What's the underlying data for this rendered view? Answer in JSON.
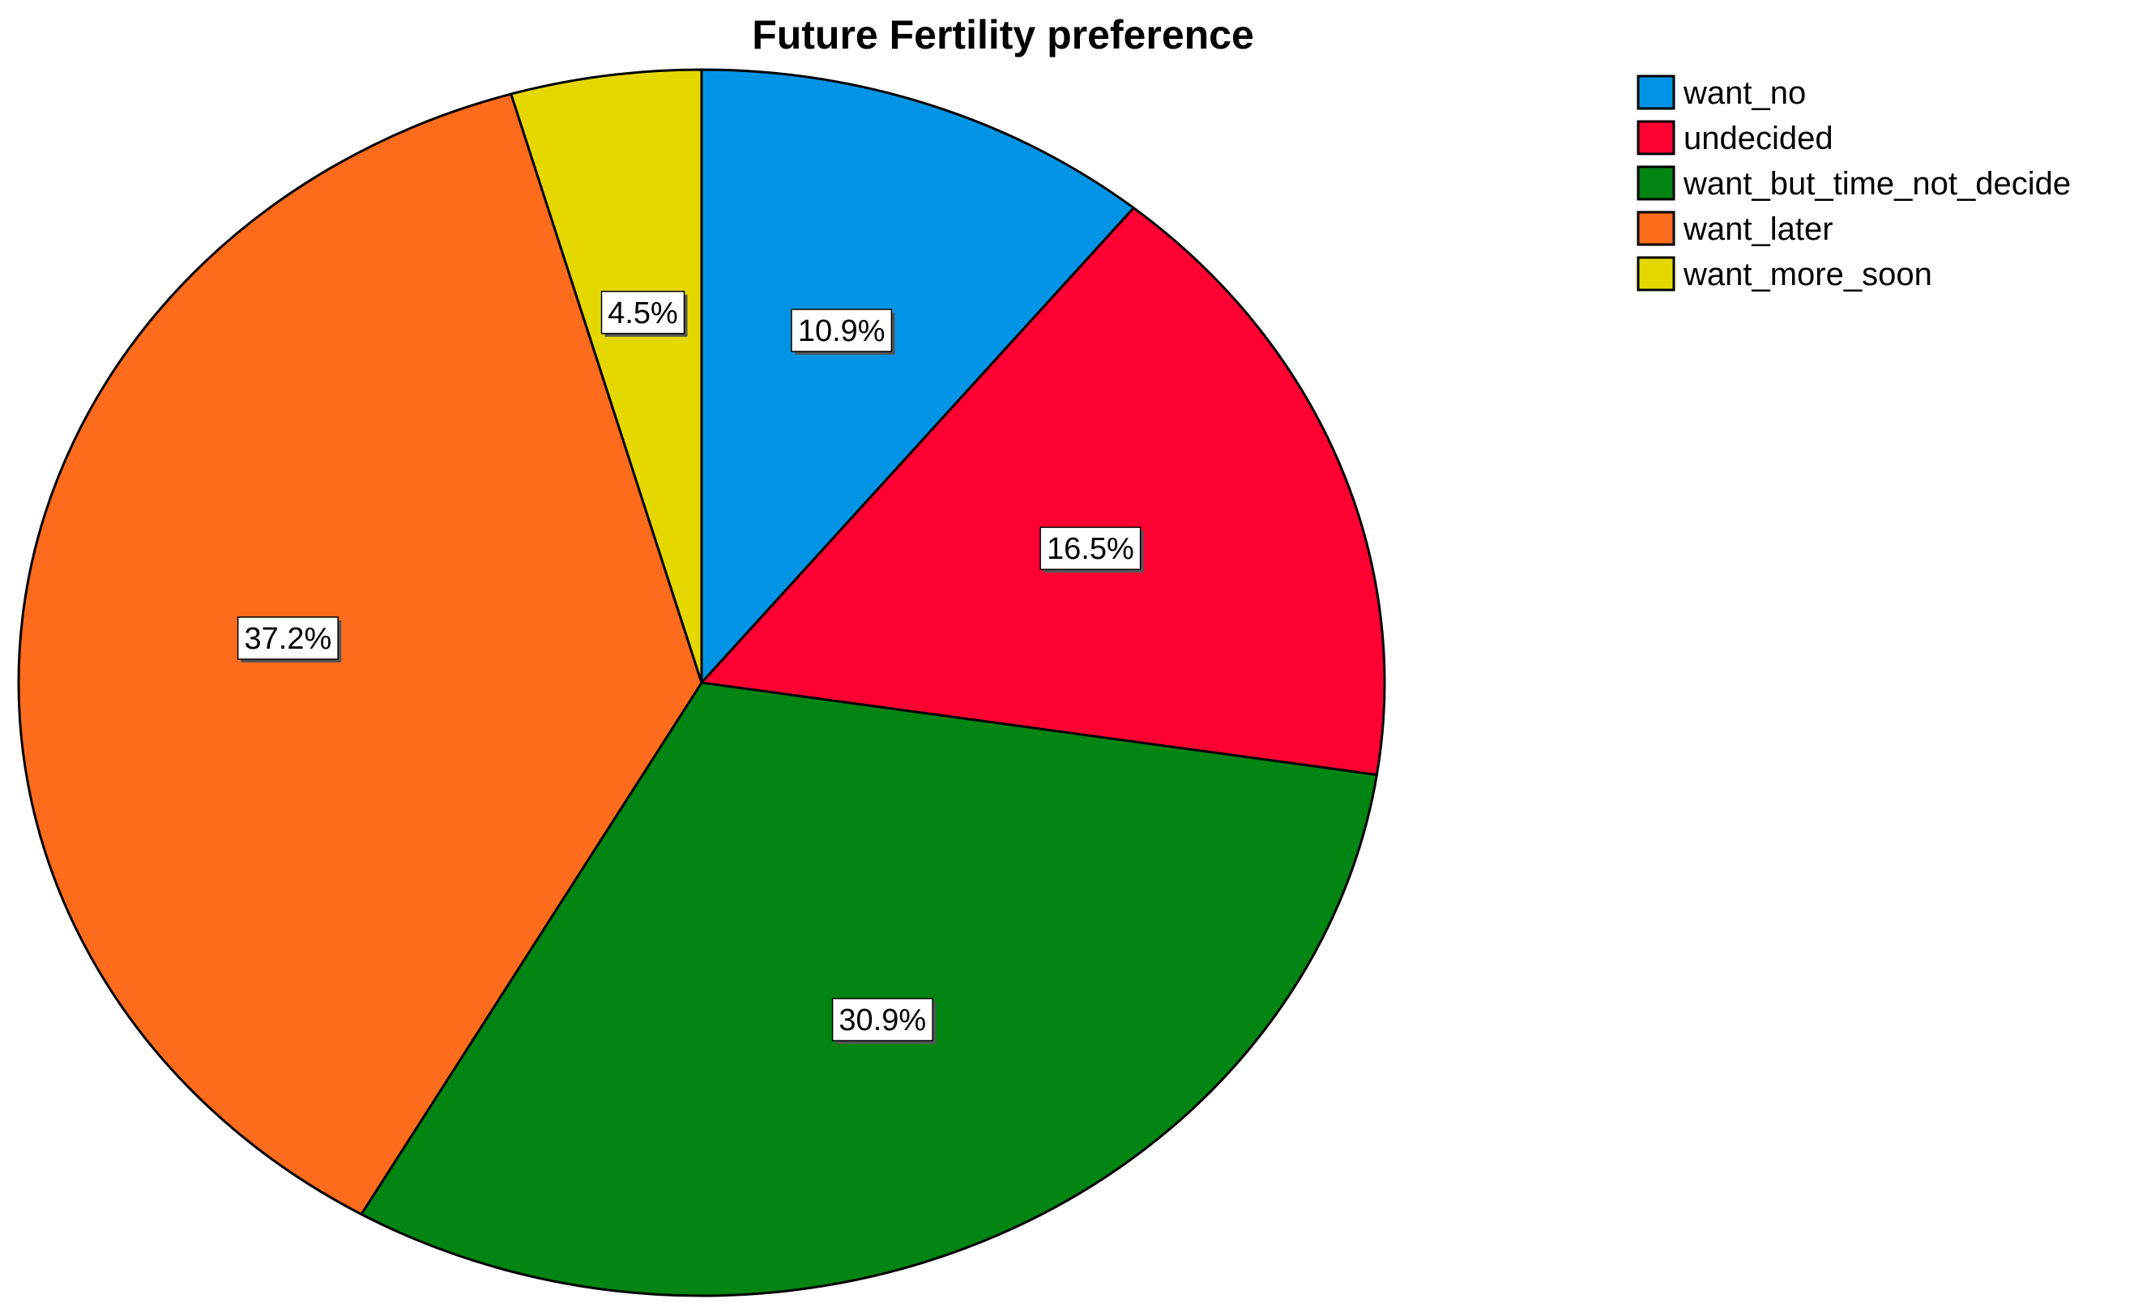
{
  "chart_data": {
    "type": "pie",
    "title": "Future Fertility preference",
    "slices": [
      {
        "label": "want_no",
        "value": 10.9,
        "display": "10.9%",
        "color": "#0394e6"
      },
      {
        "label": "undecided",
        "value": 16.5,
        "display": "16.5%",
        "color": "#ff0033"
      },
      {
        "label": "want_but_time_not_decide",
        "value": 30.9,
        "display": "30.9%",
        "color": "#028512"
      },
      {
        "label": "want_later",
        "value": 37.2,
        "display": "37.2%",
        "color": "#fd6b1c"
      },
      {
        "label": "want_more_soon",
        "value": 4.5,
        "display": "4.5%",
        "color": "#e5d800"
      }
    ],
    "start_angle": "12 o'clock",
    "direction": "clockwise",
    "legend_position": "top-right"
  }
}
